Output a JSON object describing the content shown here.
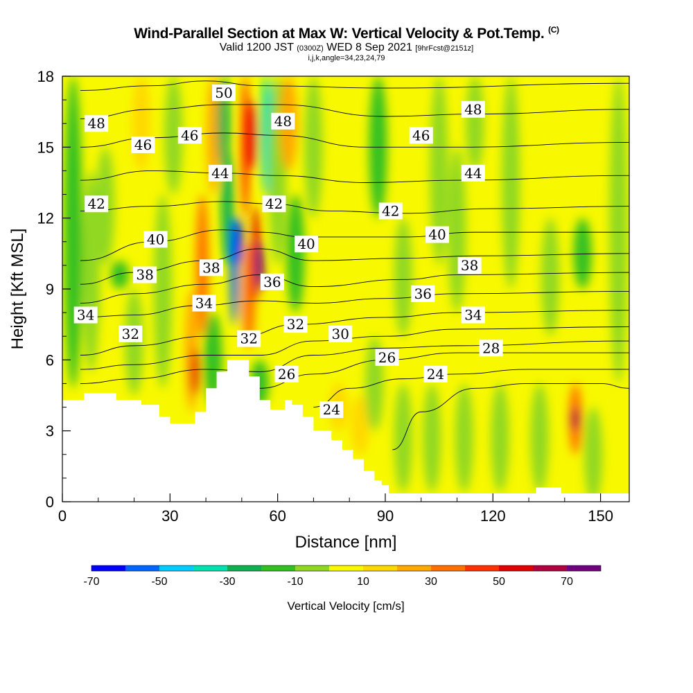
{
  "title": {
    "line1": "Wind-Parallel Section at Max W: Vertical Velocity & Pot.Temp.",
    "copyright": "(C)",
    "line2_a": "Valid 1200 JST",
    "line2_b": "(0300Z)",
    "line2_c": "WED 8 Sep 2021",
    "line2_d": "[9hrFcst@2151z]",
    "line3": "i,j,k,angle=34,23,24,79"
  },
  "chart_data": {
    "type": "heatmap",
    "xlabel": "Distance [nm]",
    "ylabel": "Height [Kft MSL]",
    "xlim": [
      0,
      158
    ],
    "ylim": [
      0,
      18
    ],
    "xticks": [
      0,
      30,
      60,
      90,
      120,
      150
    ],
    "yticks": [
      0,
      3,
      6,
      9,
      12,
      15,
      18
    ],
    "colorbar": {
      "title": "Vertical Velocity [cm/s]",
      "range": [
        -70,
        80
      ],
      "tick_values": [
        -70,
        -50,
        -30,
        -10,
        10,
        30,
        50,
        70
      ],
      "colors": [
        "#0000ff",
        "#0066ff",
        "#00ccff",
        "#00e0b0",
        "#10b050",
        "#30c020",
        "#90d820",
        "#f8f800",
        "#ffd800",
        "#ffa800",
        "#ff7000",
        "#ff3000",
        "#e00000",
        "#b00040",
        "#700080"
      ]
    },
    "background_color": "#f8f800",
    "velocity_features": [
      {
        "x": 3,
        "y0": 4.8,
        "y1": 18,
        "value": -12
      },
      {
        "x": 8,
        "y0": 5.5,
        "y1": 14,
        "value": -5
      },
      {
        "x": 12,
        "y0": 10,
        "y1": 15,
        "value": -5
      },
      {
        "x": 16,
        "y0": 9,
        "y1": 10.2,
        "value": -15
      },
      {
        "x": 20,
        "y0": 4.5,
        "y1": 9,
        "value": -8
      },
      {
        "x": 22,
        "y0": 14,
        "y1": 18,
        "value": 15
      },
      {
        "x": 28,
        "y0": 4.8,
        "y1": 13,
        "value": -10
      },
      {
        "x": 31,
        "y0": 13,
        "y1": 18,
        "value": -8
      },
      {
        "x": 36,
        "y0": 3.8,
        "y1": 9,
        "value": 22
      },
      {
        "x": 37,
        "y0": 4.5,
        "y1": 6.5,
        "value": 55
      },
      {
        "x": 39,
        "y0": 7,
        "y1": 13,
        "value": 32
      },
      {
        "x": 42,
        "y0": 13,
        "y1": 18,
        "value": 25
      },
      {
        "x": 42,
        "y0": 4,
        "y1": 8,
        "value": -15
      },
      {
        "x": 46,
        "y0": 10,
        "y1": 15,
        "value": -25
      },
      {
        "x": 48,
        "y0": 7.5,
        "y1": 12,
        "value": -55
      },
      {
        "x": 45,
        "y0": 14,
        "y1": 18,
        "value": -25
      },
      {
        "x": 49,
        "y0": 10,
        "y1": 12,
        "value": -65
      },
      {
        "x": 52,
        "y0": 6.5,
        "y1": 11,
        "value": 35
      },
      {
        "x": 54,
        "y0": 8.5,
        "y1": 12.5,
        "value": 55
      },
      {
        "x": 55,
        "y0": 9,
        "y1": 11,
        "value": 72
      },
      {
        "x": 51,
        "y0": 12,
        "y1": 18,
        "value": 45
      },
      {
        "x": 53,
        "y0": 14,
        "y1": 17,
        "value": 55
      },
      {
        "x": 57,
        "y0": 13,
        "y1": 18,
        "value": -35
      },
      {
        "x": 55,
        "y0": 4,
        "y1": 6,
        "value": -20
      },
      {
        "x": 60,
        "y0": 10,
        "y1": 18,
        "value": -8
      },
      {
        "x": 63,
        "y0": 14,
        "y1": 18,
        "value": 20
      },
      {
        "x": 65,
        "y0": 8,
        "y1": 13,
        "value": -15
      },
      {
        "x": 70,
        "y0": 12,
        "y1": 18,
        "value": -5
      },
      {
        "x": 77,
        "y0": 3,
        "y1": 5,
        "value": 18
      },
      {
        "x": 83,
        "y0": 2,
        "y1": 4.5,
        "value": 18
      },
      {
        "x": 88,
        "y0": 12,
        "y1": 18,
        "value": -12
      },
      {
        "x": 87,
        "y0": 3,
        "y1": 7,
        "value": -5
      },
      {
        "x": 95,
        "y0": 7,
        "y1": 12,
        "value": -5
      },
      {
        "x": 95,
        "y0": 0.4,
        "y1": 5,
        "value": -8
      },
      {
        "x": 103,
        "y0": 0.4,
        "y1": 5,
        "value": -10
      },
      {
        "x": 105,
        "y0": 10,
        "y1": 18,
        "value": -5
      },
      {
        "x": 110,
        "y0": 8,
        "y1": 15,
        "value": -5
      },
      {
        "x": 115,
        "y0": 14,
        "y1": 18,
        "value": -10
      },
      {
        "x": 112,
        "y0": 0.4,
        "y1": 5,
        "value": -5
      },
      {
        "x": 122,
        "y0": 0.4,
        "y1": 5,
        "value": -5
      },
      {
        "x": 125,
        "y0": 9,
        "y1": 18,
        "value": -8
      },
      {
        "x": 133,
        "y0": 0.4,
        "y1": 5,
        "value": -8
      },
      {
        "x": 136,
        "y0": 7,
        "y1": 12,
        "value": -5
      },
      {
        "x": 143,
        "y0": 2,
        "y1": 5,
        "value": 35
      },
      {
        "x": 143,
        "y0": 3,
        "y1": 4,
        "value": 60
      },
      {
        "x": 145,
        "y0": 9,
        "y1": 12,
        "value": -18
      },
      {
        "x": 148,
        "y0": 0,
        "y1": 4,
        "value": -5
      },
      {
        "x": 155,
        "y0": 5,
        "y1": 18,
        "value": -5
      }
    ],
    "isentropes": [
      {
        "theta": 22,
        "pts": [
          [
            92,
            2.2
          ],
          [
            100,
            3.8
          ],
          [
            115,
            4.8
          ],
          [
            130,
            5.0
          ],
          [
            150,
            5.0
          ],
          [
            158,
            4.8
          ]
        ]
      },
      {
        "theta": 24,
        "pts": [
          [
            70,
            4.0
          ],
          [
            80,
            4.8
          ],
          [
            95,
            5.2
          ],
          [
            110,
            5.4
          ],
          [
            130,
            5.6
          ],
          [
            158,
            5.6
          ]
        ]
      },
      {
        "theta": 26,
        "pts": [
          [
            55,
            4.8
          ],
          [
            70,
            5.4
          ],
          [
            90,
            6.0
          ],
          [
            110,
            6.3
          ],
          [
            158,
            6.3
          ]
        ]
      },
      {
        "theta": 28,
        "pts": [
          [
            5,
            5.0
          ],
          [
            20,
            5.2
          ],
          [
            40,
            5.6
          ],
          [
            55,
            5.5
          ],
          [
            70,
            6.2
          ],
          [
            90,
            6.5
          ],
          [
            110,
            6.6
          ],
          [
            158,
            6.8
          ]
        ]
      },
      {
        "theta": 30,
        "pts": [
          [
            5,
            5.6
          ],
          [
            20,
            5.8
          ],
          [
            40,
            6.2
          ],
          [
            55,
            6.2
          ],
          [
            70,
            6.8
          ],
          [
            90,
            7.0
          ],
          [
            110,
            7.3
          ],
          [
            158,
            7.4
          ]
        ]
      },
      {
        "theta": 32,
        "pts": [
          [
            5,
            6.2
          ],
          [
            20,
            6.6
          ],
          [
            40,
            7.0
          ],
          [
            50,
            7.0
          ],
          [
            65,
            7.5
          ],
          [
            90,
            7.8
          ],
          [
            110,
            8.0
          ],
          [
            158,
            8.1
          ]
        ]
      },
      {
        "theta": 34,
        "pts": [
          [
            5,
            7.8
          ],
          [
            20,
            7.9
          ],
          [
            38,
            8.3
          ],
          [
            55,
            8.5
          ],
          [
            70,
            8.4
          ],
          [
            90,
            8.6
          ],
          [
            110,
            8.8
          ],
          [
            158,
            8.9
          ]
        ]
      },
      {
        "theta": 36,
        "pts": [
          [
            5,
            8.4
          ],
          [
            20,
            8.8
          ],
          [
            40,
            9.2
          ],
          [
            55,
            9.6
          ],
          [
            70,
            9.1
          ],
          [
            95,
            9.4
          ],
          [
            110,
            9.6
          ],
          [
            158,
            9.7
          ]
        ]
      },
      {
        "theta": 38,
        "pts": [
          [
            5,
            9.2
          ],
          [
            20,
            9.7
          ],
          [
            40,
            10.2
          ],
          [
            55,
            10.7
          ],
          [
            70,
            10.2
          ],
          [
            95,
            10.3
          ],
          [
            115,
            10.4
          ],
          [
            158,
            10.5
          ]
        ]
      },
      {
        "theta": 40,
        "pts": [
          [
            5,
            10.2
          ],
          [
            25,
            11.0
          ],
          [
            45,
            11.5
          ],
          [
            55,
            11.4
          ],
          [
            68,
            11.2
          ],
          [
            95,
            11.2
          ],
          [
            115,
            11.4
          ],
          [
            158,
            11.4
          ]
        ]
      },
      {
        "theta": 42,
        "pts": [
          [
            5,
            12.3
          ],
          [
            25,
            12.5
          ],
          [
            45,
            12.7
          ],
          [
            58,
            12.6
          ],
          [
            75,
            12.3
          ],
          [
            95,
            12.2
          ],
          [
            120,
            12.4
          ],
          [
            158,
            12.5
          ]
        ]
      },
      {
        "theta": 44,
        "pts": [
          [
            5,
            13.6
          ],
          [
            25,
            14.0
          ],
          [
            45,
            13.9
          ],
          [
            60,
            13.8
          ],
          [
            85,
            13.5
          ],
          [
            110,
            13.6
          ],
          [
            158,
            13.8
          ]
        ]
      },
      {
        "theta": 46,
        "pts": [
          [
            5,
            15.0
          ],
          [
            25,
            15.4
          ],
          [
            45,
            15.6
          ],
          [
            60,
            15.5
          ],
          [
            85,
            15.0
          ],
          [
            110,
            15.0
          ],
          [
            158,
            15.2
          ]
        ]
      },
      {
        "theta": 48,
        "pts": [
          [
            5,
            16.2
          ],
          [
            25,
            16.6
          ],
          [
            45,
            16.8
          ],
          [
            60,
            16.8
          ],
          [
            90,
            16.3
          ],
          [
            115,
            16.4
          ],
          [
            158,
            16.6
          ]
        ]
      },
      {
        "theta": 50,
        "pts": [
          [
            5,
            17.4
          ],
          [
            25,
            17.6
          ],
          [
            40,
            17.8
          ],
          [
            55,
            17.6
          ],
          [
            90,
            17.5
          ],
          [
            158,
            17.7
          ]
        ]
      }
    ],
    "contour_labels": [
      {
        "text": "48",
        "x": 9.5,
        "y": 16.0
      },
      {
        "text": "46",
        "x": 22.5,
        "y": 15.1
      },
      {
        "text": "46",
        "x": 35.5,
        "y": 15.5
      },
      {
        "text": "50",
        "x": 45,
        "y": 17.3
      },
      {
        "text": "48",
        "x": 61.5,
        "y": 16.1
      },
      {
        "text": "46",
        "x": 100,
        "y": 15.5
      },
      {
        "text": "48",
        "x": 114.5,
        "y": 16.6
      },
      {
        "text": "44",
        "x": 44,
        "y": 13.9
      },
      {
        "text": "44",
        "x": 114.5,
        "y": 13.9
      },
      {
        "text": "42",
        "x": 9.5,
        "y": 12.6
      },
      {
        "text": "42",
        "x": 59,
        "y": 12.6
      },
      {
        "text": "42",
        "x": 91.5,
        "y": 12.3
      },
      {
        "text": "40",
        "x": 26,
        "y": 11.1
      },
      {
        "text": "40",
        "x": 68,
        "y": 10.9
      },
      {
        "text": "40",
        "x": 104.5,
        "y": 11.3
      },
      {
        "text": "38",
        "x": 23,
        "y": 9.6
      },
      {
        "text": "38",
        "x": 41.5,
        "y": 9.9
      },
      {
        "text": "38",
        "x": 113.5,
        "y": 10.0
      },
      {
        "text": "36",
        "x": 58.5,
        "y": 9.3
      },
      {
        "text": "36",
        "x": 100.5,
        "y": 8.8
      },
      {
        "text": "34",
        "x": 6.5,
        "y": 7.9
      },
      {
        "text": "34",
        "x": 39.5,
        "y": 8.4
      },
      {
        "text": "34",
        "x": 114.5,
        "y": 7.9
      },
      {
        "text": "32",
        "x": 19,
        "y": 7.1
      },
      {
        "text": "32",
        "x": 52,
        "y": 6.9
      },
      {
        "text": "32",
        "x": 65,
        "y": 7.5
      },
      {
        "text": "30",
        "x": 77.5,
        "y": 7.1
      },
      {
        "text": "28",
        "x": 119.5,
        "y": 6.5
      },
      {
        "text": "26",
        "x": 90.5,
        "y": 6.1
      },
      {
        "text": "26",
        "x": 62.5,
        "y": 5.4
      },
      {
        "text": "24",
        "x": 104,
        "y": 5.4
      },
      {
        "text": "24",
        "x": 75,
        "y": 3.9
      }
    ],
    "terrain": [
      [
        0,
        4.3
      ],
      [
        6,
        4.3
      ],
      [
        6,
        4.6
      ],
      [
        15,
        4.6
      ],
      [
        15,
        4.3
      ],
      [
        22,
        4.3
      ],
      [
        22,
        4.1
      ],
      [
        27,
        4.1
      ],
      [
        27,
        3.6
      ],
      [
        30,
        3.6
      ],
      [
        30,
        3.3
      ],
      [
        37,
        3.3
      ],
      [
        37,
        3.8
      ],
      [
        40,
        3.8
      ],
      [
        40,
        4.8
      ],
      [
        43,
        4.8
      ],
      [
        43,
        5.5
      ],
      [
        46,
        5.5
      ],
      [
        46,
        6.0
      ],
      [
        52,
        6.0
      ],
      [
        52,
        5.3
      ],
      [
        55,
        5.3
      ],
      [
        55,
        4.3
      ],
      [
        58,
        4.3
      ],
      [
        58,
        3.9
      ],
      [
        62,
        3.9
      ],
      [
        62,
        4.3
      ],
      [
        64,
        4.3
      ],
      [
        64,
        4.1
      ],
      [
        67,
        4.1
      ],
      [
        67,
        3.6
      ],
      [
        70,
        3.6
      ],
      [
        70,
        3.0
      ],
      [
        75,
        3.0
      ],
      [
        75,
        2.6
      ],
      [
        78,
        2.6
      ],
      [
        78,
        2.2
      ],
      [
        81,
        2.2
      ],
      [
        81,
        1.8
      ],
      [
        84,
        1.8
      ],
      [
        84,
        1.3
      ],
      [
        87,
        1.3
      ],
      [
        87,
        0.9
      ],
      [
        89,
        0.9
      ],
      [
        89,
        0.7
      ],
      [
        91,
        0.7
      ],
      [
        91,
        0.35
      ],
      [
        132,
        0.35
      ],
      [
        132,
        0.6
      ],
      [
        139,
        0.6
      ],
      [
        139,
        0.35
      ],
      [
        158,
        0.35
      ],
      [
        158,
        0
      ],
      [
        0,
        0
      ]
    ]
  }
}
